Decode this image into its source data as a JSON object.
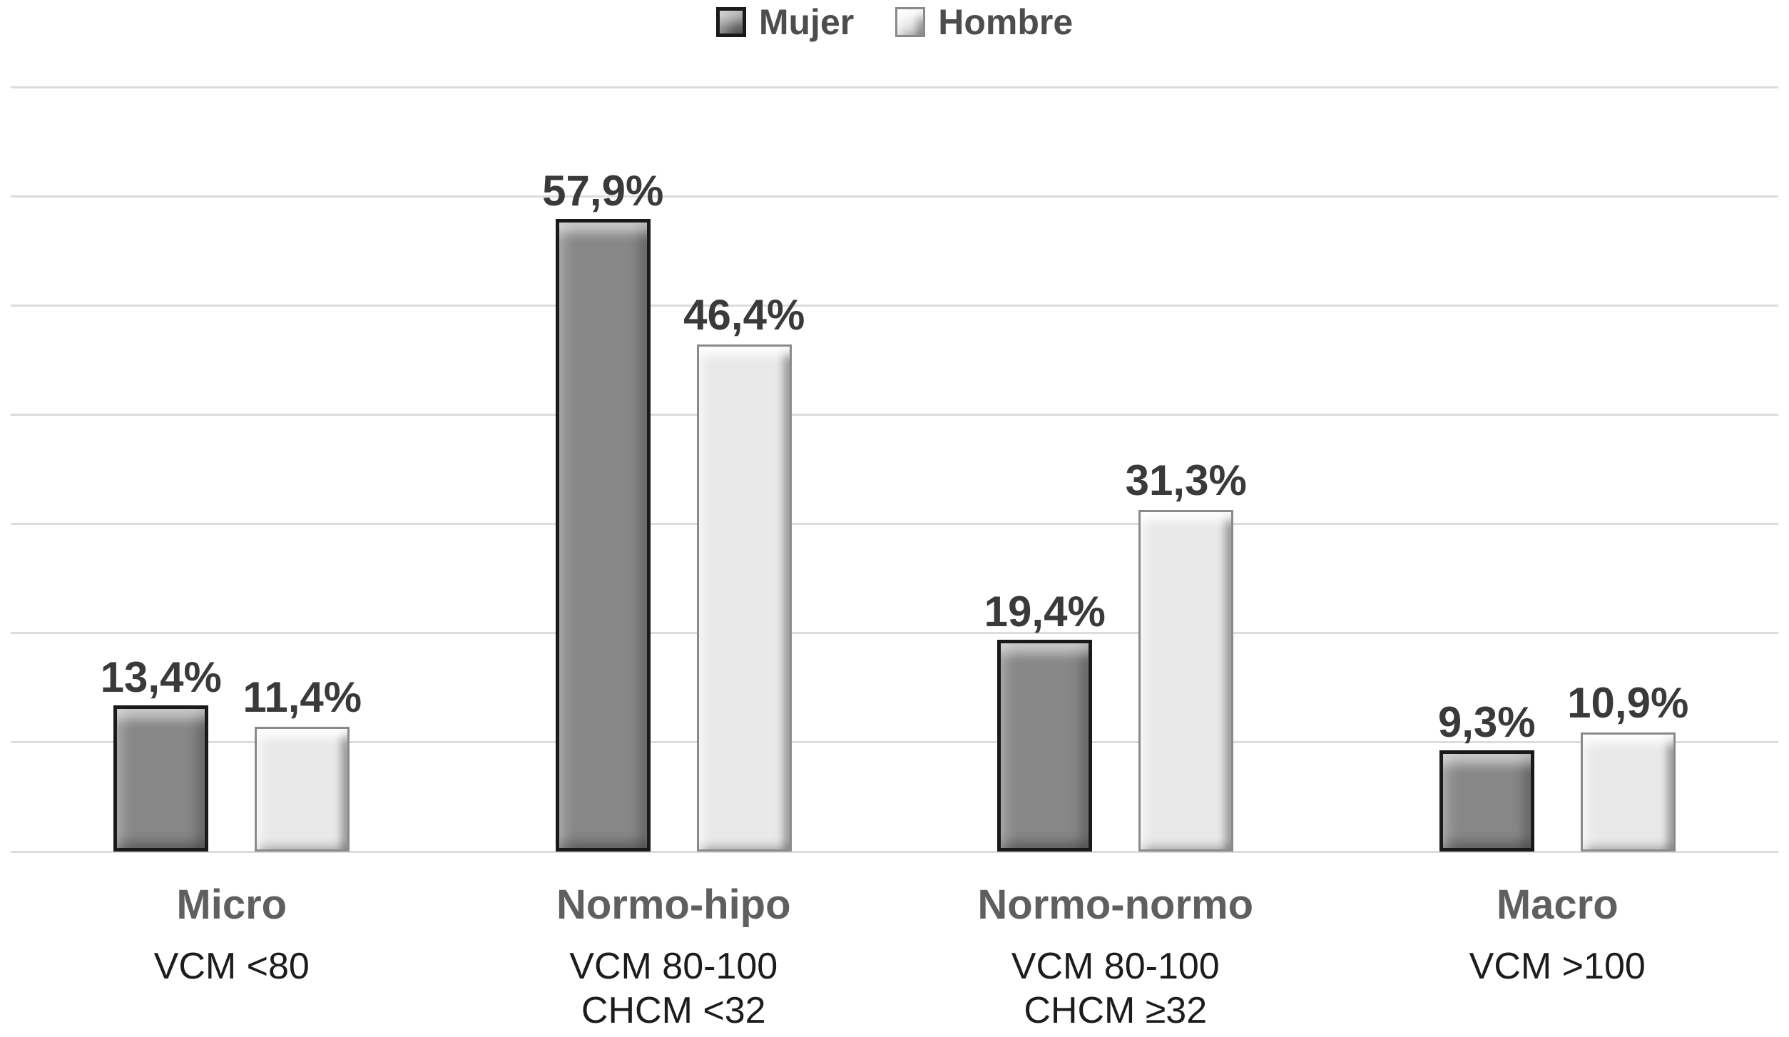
{
  "legend": {
    "items": [
      {
        "label": "Mujer"
      },
      {
        "label": "Hombre"
      }
    ]
  },
  "chart_data": {
    "type": "bar",
    "title": "",
    "xlabel": "",
    "ylabel": "",
    "categories": [
      "Micro",
      "Normo-hipo",
      "Normo-normo",
      "Macro"
    ],
    "category_sublabels": [
      [
        "VCM <80"
      ],
      [
        "VCM 80-100",
        "CHCM <32"
      ],
      [
        "VCM 80-100",
        "CHCM ≥32"
      ],
      [
        "VCM >100"
      ]
    ],
    "series": [
      {
        "name": "Mujer",
        "values": [
          13.4,
          57.9,
          19.4,
          9.3
        ],
        "data_labels": [
          "13,4%",
          "57,9%",
          "19,4%",
          "9,3%"
        ],
        "fill_color": "#878787",
        "border_color": "#1a1a1a",
        "border_width": 5
      },
      {
        "name": "Hombre",
        "values": [
          11.4,
          46.4,
          31.3,
          10.9
        ],
        "data_labels": [
          "11,4%",
          "46,4%",
          "31,3%",
          "10,9%"
        ],
        "fill_color": "#e9e9e9",
        "border_color": "#8a8a8a",
        "border_width": 3
      }
    ],
    "ylim": [
      0,
      70
    ],
    "grid_step": 10,
    "grid_on": true,
    "legend_position": "top"
  },
  "styles": {
    "background": "#ffffff",
    "grid_color": "#dcdcdc",
    "data_label_color": "#3a3a3a",
    "legend_text_color": "#4d4d4d",
    "category_color": "#5f5f5f",
    "sublabel_color": "#1c1c1c"
  }
}
